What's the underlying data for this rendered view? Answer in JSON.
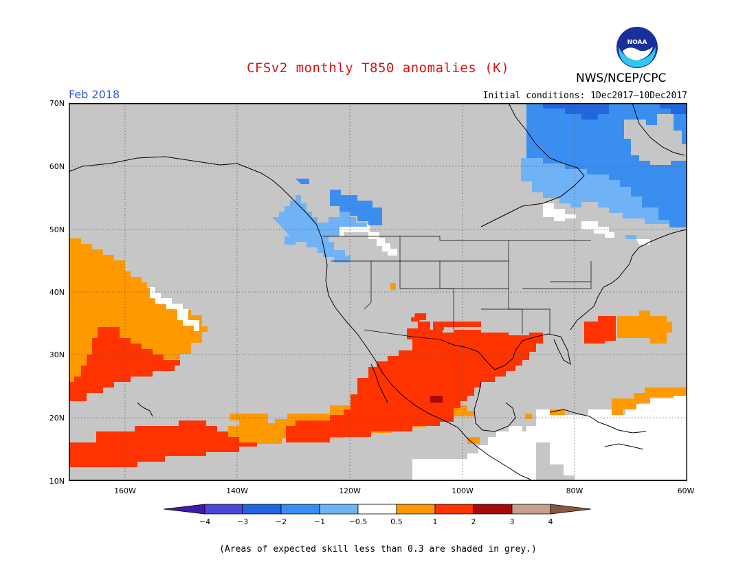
{
  "header": {
    "title": "CFSv2 monthly T850 anomalies (K)",
    "org": "NWS/NCEP/CPC",
    "month": "Feb 2018",
    "initial_conditions": "Initial conditions: 1Dec2017–10Dec2017",
    "logo_icon": "noaa-logo-icon"
  },
  "map": {
    "projection": "equirectangular",
    "lon_range": [
      "170W",
      "60W"
    ],
    "lat_range": [
      "10N",
      "70N"
    ],
    "lat_labels": [
      "70N",
      "60N",
      "50N",
      "40N",
      "30N",
      "20N",
      "10N"
    ],
    "lon_labels": [
      "160W",
      "140W",
      "120W",
      "100W",
      "80W",
      "60W"
    ],
    "regions": [
      {
        "category": "1",
        "area": "NE Pacific subtropics (west of California)"
      },
      {
        "category": "2",
        "area": "Subtropical Pacific 30N"
      },
      {
        "category": "2",
        "area": "Northern Mexico, Texas, Gulf coast"
      },
      {
        "category": "1",
        "area": "Eastern tropical Pacific 10-20N"
      },
      {
        "category": "2",
        "area": "Eastern tropical Pacific 15-20N"
      },
      {
        "category": "3",
        "area": "Central Mexico (small patch)"
      },
      {
        "category": "-2",
        "area": "Hudson Bay / Labrador"
      },
      {
        "category": "-1",
        "area": "British Columbia / Pacific Northwest"
      },
      {
        "category": "1",
        "area": "Western Atlantic near 33N"
      },
      {
        "category": "-0.5..0.5",
        "area": "Caribbean Sea"
      }
    ]
  },
  "colorbar": {
    "labels": [
      "−4",
      "−3",
      "−2",
      "−1",
      "−0.5",
      "0.5",
      "1",
      "2",
      "3",
      "4"
    ],
    "colors": [
      "#3d1aa8",
      "#4c46d6",
      "#2266dd",
      "#3a8ef0",
      "#6fb2f5",
      "#ffffff",
      "#ff9900",
      "#ff3300",
      "#a80a0a",
      "#c8a08c",
      "#8c5540"
    ]
  },
  "footnote": "(Areas of expected skill less than 0.3 are shaded in grey.)",
  "colors": {
    "grey": "#c6c6c6",
    "plus1": "#ff9900",
    "plus2": "#ff3300",
    "plus3": "#a80a0a",
    "minus2": "#3a8ef0",
    "minus1": "#6fb2f5",
    "title_red": "#e01010",
    "month_blue": "#2a55e0"
  }
}
